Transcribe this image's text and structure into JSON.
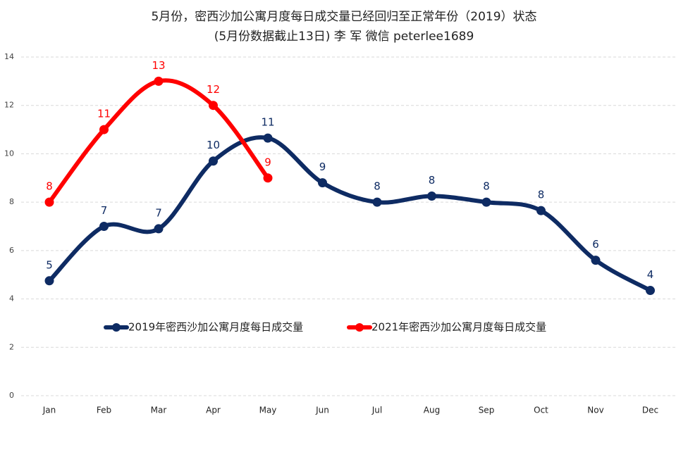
{
  "chart_data": {
    "type": "line",
    "title": "5月份，密西沙加公寓月度每日成交量已经回归至正常年份（2019）状态",
    "subtitle": "(5月份数据截止13日) 李 军  微信  peterlee1689",
    "categories": [
      "Jan",
      "Feb",
      "Mar",
      "Apr",
      "May",
      "Jun",
      "Jul",
      "Aug",
      "Sep",
      "Oct",
      "Nov",
      "Dec"
    ],
    "series": [
      {
        "name": "2019年密西沙加公寓月度每日成交量",
        "color": "#0e2b63",
        "values": [
          4.75,
          7.0,
          6.9,
          9.7,
          10.65,
          8.8,
          8.0,
          8.25,
          8.0,
          7.65,
          5.6,
          4.35
        ],
        "value_labels": [
          "5",
          "7",
          "7",
          "10",
          "11",
          "9",
          "8",
          "8",
          "8",
          "8",
          "6",
          "4"
        ]
      },
      {
        "name": "2021年密西沙加公寓月度每日成交量",
        "color": "#ff0000",
        "values": [
          8,
          11,
          13,
          12,
          9,
          null,
          null,
          null,
          null,
          null,
          null,
          null
        ],
        "value_labels": [
          "8",
          "11",
          "13",
          "12",
          "9",
          null,
          null,
          null,
          null,
          null,
          null,
          null
        ]
      }
    ],
    "ylim": [
      0,
      14
    ],
    "yticks": [
      0,
      2,
      4,
      6,
      8,
      10,
      12,
      14
    ],
    "grid": true,
    "smooth": true,
    "legend": "center"
  }
}
